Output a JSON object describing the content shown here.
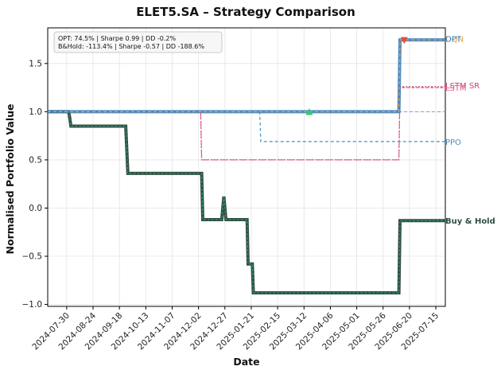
{
  "chart_data": {
    "type": "line",
    "title": "ELET5.SA – Strategy Comparison",
    "xlabel": "Date",
    "ylabel": "Normalised Portfolio Value",
    "ylim": [
      -1.02,
      1.87
    ],
    "x_tick_labels": [
      "2024-07-30",
      "2024-08-24",
      "2024-09-18",
      "2024-10-13",
      "2024-11-07",
      "2024-12-02",
      "2024-12-27",
      "2025-01-21",
      "2025-02-15",
      "2025-03-12",
      "2025-04-06",
      "2025-05-01",
      "2025-05-26",
      "2025-06-20",
      "2025-07-15"
    ],
    "y_ticks": [
      -1.0,
      -0.5,
      0.0,
      0.5,
      1.0,
      1.5
    ],
    "y_tick_labels": [
      "−1.0",
      "−0.5",
      "0.0",
      "0.5",
      "1.0",
      "1.5"
    ],
    "grid": true,
    "info_box": [
      "OPT: 74.5% | Sharpe 0.99 | DD -0.2%",
      "B&Hold: -113.4% | Sharpe -0.57 | DD -188.6%"
    ],
    "series": [
      {
        "name": "OPT",
        "color": "#3a7ebf",
        "x": [
          "2024-07-12",
          "2025-06-10",
          "2025-06-11",
          "2025-07-24"
        ],
        "y": [
          1.0,
          1.0,
          1.745,
          1.745
        ]
      },
      {
        "name": "LSTM",
        "color": "#e05c8a",
        "x": [
          "2024-07-12",
          "2024-12-04",
          "2024-12-05",
          "2025-06-10",
          "2025-06-11",
          "2025-07-24"
        ],
        "y": [
          1.0,
          1.0,
          0.5,
          0.5,
          1.25,
          1.25
        ]
      },
      {
        "name": "LSTM SR",
        "color": "#c94a6a",
        "x": [
          "2024-07-12",
          "2024-12-04",
          "2024-12-05",
          "2024-12-27",
          "2024-12-29",
          "2025-06-10",
          "2025-06-11",
          "2025-07-24"
        ],
        "y": [
          1.0,
          1.0,
          0.5,
          0.5,
          0.5,
          0.5,
          1.26,
          1.26
        ]
      },
      {
        "name": "PPO",
        "color": "#4a90b8",
        "x": [
          "2024-07-12",
          "2025-01-29",
          "2025-01-30",
          "2025-07-24"
        ],
        "y": [
          1.0,
          1.0,
          0.69,
          0.69
        ]
      },
      {
        "name": "DQN",
        "color": "#e8a33c",
        "x": [
          "2024-07-12",
          "2025-06-10",
          "2025-06-11",
          "2025-07-24"
        ],
        "y": [
          1.0,
          1.0,
          1.745,
          1.745
        ]
      },
      {
        "name": "Buy & Hold",
        "color": "#2f4f3f",
        "x": [
          "2024-07-12",
          "2024-08-01",
          "2024-08-03",
          "2024-09-24",
          "2024-09-26",
          "2024-12-05",
          "2024-12-06",
          "2024-12-24",
          "2024-12-26",
          "2024-12-28",
          "2025-01-17",
          "2025-01-18",
          "2025-01-22",
          "2025-01-23",
          "2025-06-10",
          "2025-06-11",
          "2025-07-24"
        ],
        "y": [
          1.0,
          1.0,
          0.85,
          0.85,
          0.36,
          0.36,
          -0.12,
          -0.12,
          0.12,
          -0.12,
          -0.12,
          -0.58,
          -0.58,
          -0.88,
          -0.88,
          -0.13,
          -0.13
        ]
      }
    ],
    "end_labels": [
      "DQN",
      "OPT",
      "LSTM SR",
      "LSTM",
      "PPO",
      "Buy & Hold"
    ],
    "markers": [
      {
        "type": "buy",
        "x": "2025-03-17",
        "y": 0.995,
        "color": "#2ecc71"
      },
      {
        "type": "sell",
        "x": "2025-06-15",
        "y": 1.745,
        "color": "#e74c3c"
      }
    ],
    "reference_line": {
      "y": 1.0,
      "color": "#b084cc"
    }
  }
}
